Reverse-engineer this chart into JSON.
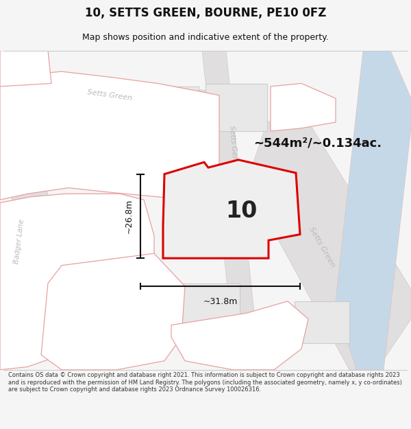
{
  "title": "10, SETTS GREEN, BOURNE, PE10 0FZ",
  "subtitle": "Map shows position and indicative extent of the property.",
  "area_label": "~544m²/~0.134ac.",
  "plot_number": "10",
  "width_label": "~31.8m",
  "height_label": "~26.8m",
  "footer_text": "Contains OS data © Crown copyright and database right 2021. This information is subject to Crown copyright and database rights 2023 and is reproduced with the permission of HM Land Registry. The polygons (including the associated geometry, namely x, y co-ordinates) are subject to Crown copyright and database rights 2023 Ordnance Survey 100026316.",
  "bg_color": "#f5f5f5",
  "map_bg": "#ffffff",
  "road_fill": "#e0dede",
  "road_edge": "#cccccc",
  "building_fill": "#e8e8e8",
  "building_edge": "#cccccc",
  "plot_fill": "#f0efef",
  "plot_edge": "#dd0000",
  "dim_color": "#111111",
  "road_label_color": "#bbbbbb",
  "title_color": "#111111",
  "footer_color": "#333333",
  "pink_edge": "#e8a0a0",
  "pink_fill": "#ffffff",
  "blue_fill": "#c5d8e8",
  "blue_edge": "#e0c0c0"
}
